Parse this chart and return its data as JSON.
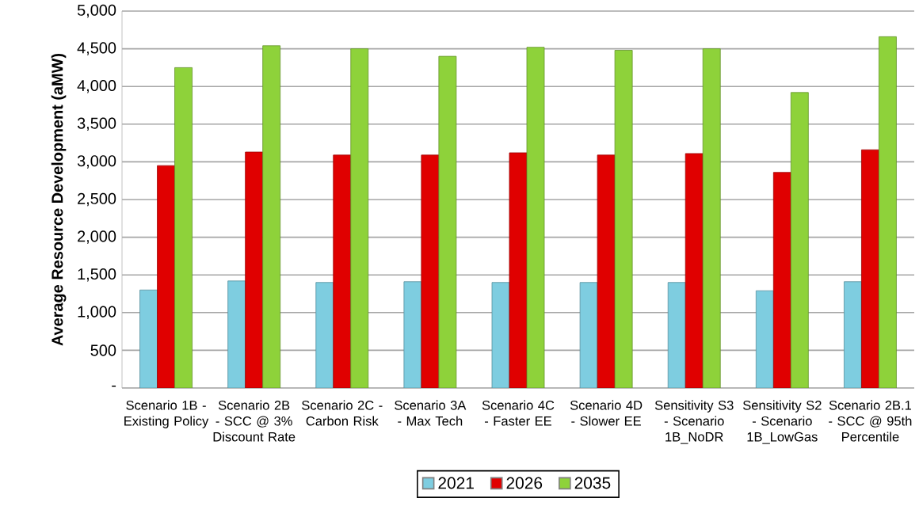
{
  "chart_data": {
    "type": "bar",
    "ylabel": "Average Resource Development (aMW)",
    "categories": [
      "Scenario 1B - Existing Policy",
      "Scenario 2B - SCC @ 3% Discount Rate",
      "Scenario 2C - Carbon Risk",
      "Scenario 3A - Max Tech",
      "Scenario 4C - Faster EE",
      "Scenario 4D - Slower EE",
      "Sensitivity S3 - Scenario 1B_NoDR",
      "Sensitivity S2 - Scenario 1B_LowGas",
      "Scenario 2B.1 - SCC @ 95th Percentile"
    ],
    "series": [
      {
        "name": "2021",
        "color": "#7ecde0",
        "values": [
          1300,
          1420,
          1400,
          1410,
          1400,
          1400,
          1400,
          1290,
          1410
        ]
      },
      {
        "name": "2026",
        "color": "#e00000",
        "values": [
          2950,
          3130,
          3090,
          3090,
          3120,
          3090,
          3110,
          2860,
          3160
        ]
      },
      {
        "name": "2035",
        "color": "#8ed23a",
        "values": [
          4250,
          4540,
          4500,
          4400,
          4520,
          4480,
          4500,
          3920,
          4660
        ]
      }
    ],
    "ylim": [
      0,
      5000
    ],
    "yticks": [
      {
        "value": 0,
        "label": "-"
      },
      500,
      {
        "value": 1000,
        "label": "1,000"
      },
      {
        "value": 1500,
        "label": "1,500"
      },
      {
        "value": 2000,
        "label": "2,000"
      },
      {
        "value": 2500,
        "label": "2,500"
      },
      {
        "value": 3000,
        "label": "3,000"
      },
      {
        "value": 3500,
        "label": "3,500"
      },
      {
        "value": 4000,
        "label": "4,000"
      },
      {
        "value": 4500,
        "label": "4,500"
      },
      {
        "value": 5000,
        "label": "5,000"
      }
    ],
    "grid": "y",
    "legend": "bottom"
  }
}
